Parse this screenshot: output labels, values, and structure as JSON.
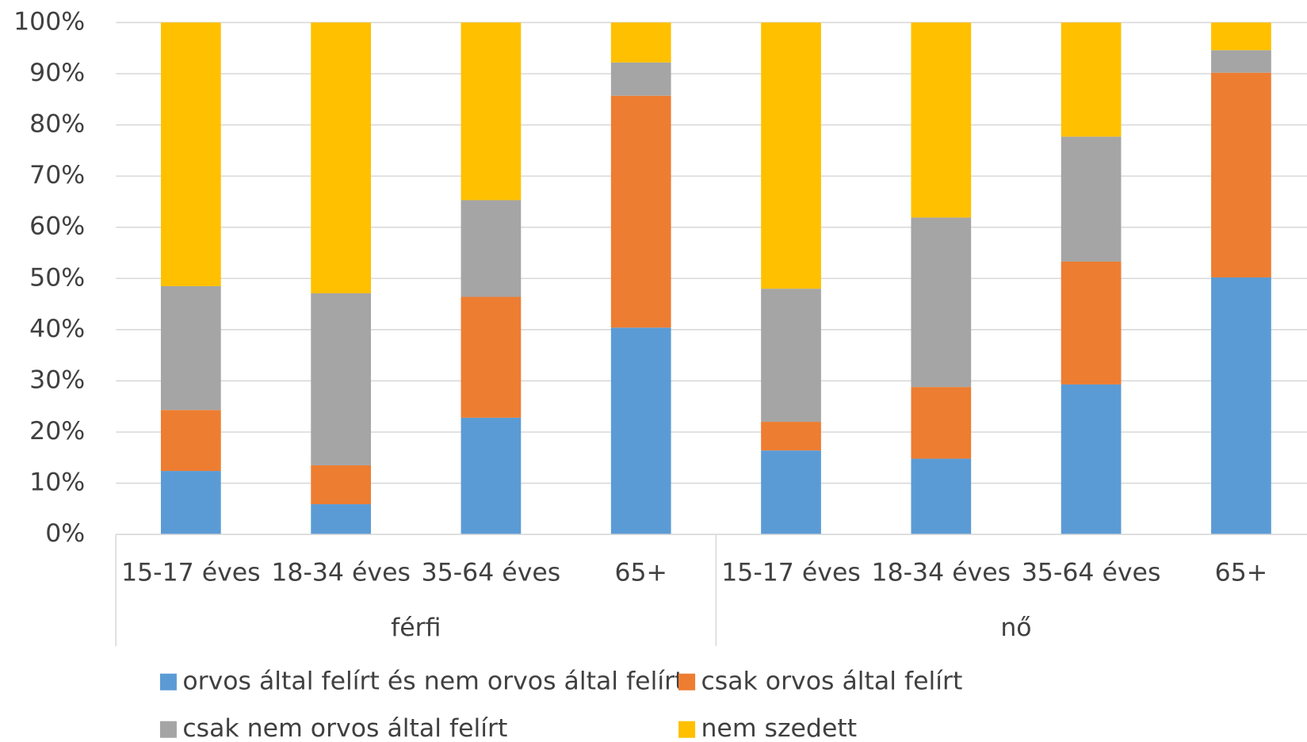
{
  "chart_data": {
    "type": "stacked_bar",
    "categories": [
      "15-17 éves",
      "18-34 éves",
      "35-64 éves",
      "65+",
      "15-17 éves",
      "18-34 éves",
      "35-64 éves",
      "65+"
    ],
    "groups": [
      "férfi",
      "nő"
    ],
    "series": [
      {
        "name": "orvos által felírt és nem orvos által felírt",
        "color": "#5b9bd5",
        "values": [
          12.4,
          5.9,
          22.8,
          40.4,
          16.4,
          14.8,
          29.3,
          50.2
        ]
      },
      {
        "name": "csak orvos által felírt",
        "color": "#ed7d31",
        "values": [
          11.9,
          7.6,
          23.6,
          45.3,
          5.6,
          14.0,
          24.0,
          40.0
        ]
      },
      {
        "name": "csak nem orvos által felírt",
        "color": "#a5a5a5",
        "values": [
          24.2,
          33.6,
          18.9,
          6.5,
          26.0,
          33.1,
          24.4,
          4.4
        ]
      },
      {
        "name": "nem szedett",
        "color": "#ffc000",
        "values": [
          51.5,
          52.9,
          34.7,
          7.8,
          52.0,
          38.1,
          22.3,
          5.4
        ]
      }
    ],
    "ylim": [
      0,
      100
    ],
    "yticks": [
      {
        "value": 0,
        "label": "0%"
      },
      {
        "value": 10,
        "label": "10%"
      },
      {
        "value": 20,
        "label": "20%"
      },
      {
        "value": 30,
        "label": "30%"
      },
      {
        "value": 40,
        "label": "40%"
      },
      {
        "value": 50,
        "label": "50%"
      },
      {
        "value": 60,
        "label": "60%"
      },
      {
        "value": 70,
        "label": "70%"
      },
      {
        "value": 80,
        "label": "80%"
      },
      {
        "value": 90,
        "label": "90%"
      },
      {
        "value": 100,
        "label": "100%"
      }
    ],
    "grid": true
  }
}
